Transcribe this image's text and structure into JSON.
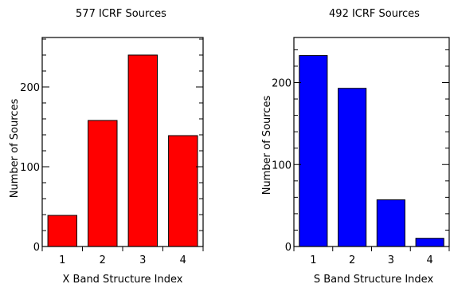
{
  "chart_data": [
    {
      "type": "bar",
      "title": "577 ICRF Sources",
      "xlabel": "X Band Structure Index",
      "ylabel": "Number of Sources",
      "categories": [
        "1",
        "2",
        "3",
        "4"
      ],
      "values": [
        39,
        158,
        240,
        139
      ],
      "bar_color": "#ff0000",
      "ylim": [
        0,
        262
      ],
      "yticks": [
        0,
        100,
        200
      ],
      "ytick_labels": [
        "0",
        "100",
        "200"
      ],
      "ytick_minor": 20
    },
    {
      "type": "bar",
      "title": "492 ICRF Sources",
      "xlabel": "S Band Structure Index",
      "ylabel": "Number of Sources",
      "categories": [
        "1",
        "2",
        "3",
        "4"
      ],
      "values": [
        233,
        193,
        57,
        10
      ],
      "bar_color": "#0000ff",
      "ylim": [
        0,
        255
      ],
      "yticks": [
        0,
        100,
        200
      ],
      "ytick_labels": [
        "0",
        "100",
        "200"
      ],
      "ytick_minor": 20
    }
  ]
}
